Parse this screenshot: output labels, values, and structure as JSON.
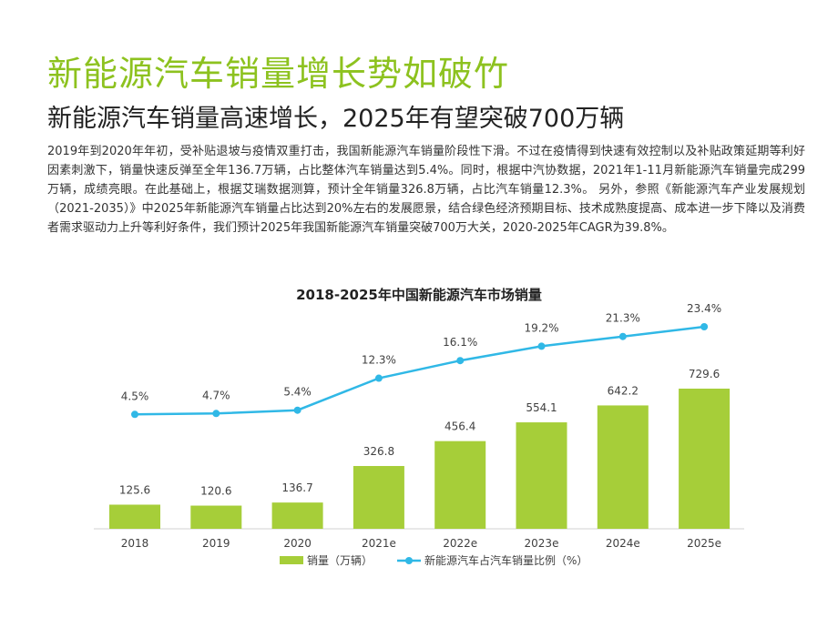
{
  "slide": {
    "title": "新能源汽车销量增长势如破竹",
    "subtitle": "新能源汽车销量高速增长，2025年有望突破700万辆",
    "body": "2019年到2020年年初，受补贴退坡与疫情双重打击，我国新能源汽车销量阶段性下滑。不过在疫情得到快速有效控制以及补贴政策延期等利好因素刺激下，销量快速反弹至全年136.7万辆，占比整体汽车销量达到5.4%。同时，根据中汽协数据，2021年1-11月新能源汽车销量完成299万辆，成绩亮眼。在此基础上，根据艾瑞数据测算，预计全年销量326.8万辆，占比汽车销量12.3%。 另外，参照《新能源汽车产业发展规划（2021-2035）》中2025年新能源汽车销量占比达到20%左右的发展愿景，结合绿色经济预期目标、技术成熟度提高、成本进一步下降以及消费者需求驱动力上升等利好条件，我们预计2025年我国新能源汽车销量突破700万大关，2020-2025年CAGR为39.8%。"
  },
  "colors": {
    "title": "#8dc21f",
    "bar": "#a6ce39",
    "line": "#30b8e6"
  },
  "chart_data": {
    "type": "bar",
    "title": "2018-2025年中国新能源汽车市场销量",
    "categories": [
      "2018",
      "2019",
      "2020",
      "2021e",
      "2022e",
      "2023e",
      "2024e",
      "2025e"
    ],
    "series": [
      {
        "name": "销量（万辆）",
        "type": "bar",
        "values": [
          125.6,
          120.6,
          136.7,
          326.8,
          456.4,
          554.1,
          642.2,
          729.6
        ],
        "labels": [
          "125.6",
          "120.6",
          "136.7",
          "326.8",
          "456.4",
          "554.1",
          "642.2",
          "729.6"
        ]
      },
      {
        "name": "新能源汽车占汽车销量比例（%）",
        "type": "line",
        "values": [
          4.5,
          4.7,
          5.4,
          12.3,
          16.1,
          19.2,
          21.3,
          23.4
        ],
        "labels": [
          "4.5%",
          "4.7%",
          "5.4%",
          "12.3%",
          "16.1%",
          "19.2%",
          "21.3%",
          "23.4%"
        ]
      }
    ],
    "legend": "bottom",
    "grid": false
  }
}
